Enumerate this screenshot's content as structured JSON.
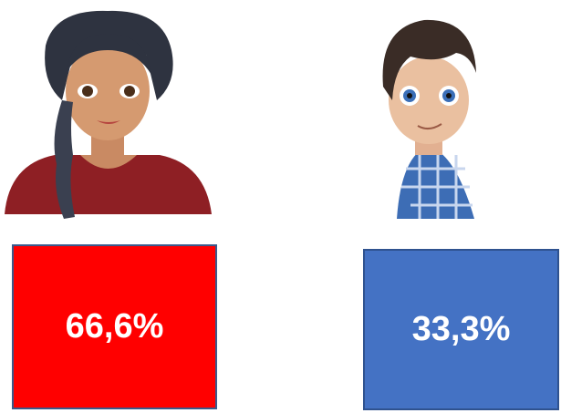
{
  "items": [
    {
      "label": "66,6%"
    },
    {
      "label": "33,3%"
    }
  ]
}
